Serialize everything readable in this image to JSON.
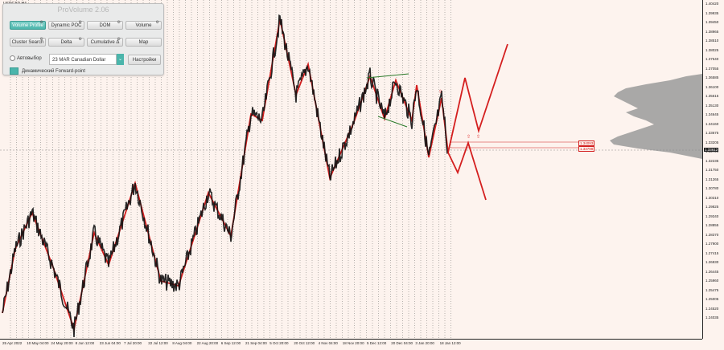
{
  "symbol": "USDCAD,H4",
  "panel": {
    "title": "ProVolume 2.06",
    "buttons": [
      {
        "label": "Volume Profile",
        "active": true,
        "gear": true
      },
      {
        "label": "Dynamic POC",
        "active": false,
        "gear": true
      },
      {
        "label": "DOM",
        "active": false,
        "gear": true
      },
      {
        "label": "Volume",
        "active": false,
        "gear": true
      },
      {
        "label": "Cluster Search",
        "active": false,
        "gear": true
      },
      {
        "label": "Delta",
        "active": false,
        "gear": true
      },
      {
        "label": "Cumulative Δ",
        "active": false,
        "gear": true
      },
      {
        "label": "Map",
        "active": false,
        "gear": false
      }
    ],
    "auto_label": "Автовыбор",
    "instrument": "23 MAR Canadian Dollar",
    "settings_label": "Настройки",
    "forward_label": "Динамический Forward-point",
    "accent_color": "#4bb5ab"
  },
  "price_ticks": [
    "1.40420",
    "1.39935",
    "1.39450",
    "1.38965",
    "1.38510",
    "1.38025",
    "1.37540",
    "1.37055",
    "1.36585",
    "1.36100",
    "1.35615",
    "1.35130",
    "1.34645",
    "1.34160",
    "1.33675",
    "1.33205",
    "1.32720",
    "1.32235",
    "1.31750",
    "1.31265",
    "1.30780",
    "1.30310",
    "1.29825",
    "1.29340",
    "1.28855",
    "1.28370",
    "1.27900",
    "1.27415",
    "1.26930",
    "1.26445",
    "1.25960",
    "1.25475",
    "1.25005",
    "1.24520",
    "1.24035"
  ],
  "current_price": "1.33612",
  "levels": [
    "1.34093",
    "1.33798"
  ],
  "time_ticks": [
    "25 Apr 2022",
    "10 May 04:00",
    "24 May 20:00",
    "8 Jun 12:00",
    "23 Jun 04:00",
    "7 Jul 20:00",
    "22 Jul 12:00",
    "8 Aug 04:00",
    "22 Aug 20:00",
    "6 Sep 12:00",
    "21 Sep 04:00",
    "5 Oct 20:00",
    "20 Oct 12:00",
    "4 Nov 04:00",
    "18 Nov 20:00",
    "5 Dec 12:00",
    "20 Dec 04:00",
    "3 Jan 20:00",
    "18 Jan 12:00"
  ],
  "colors": {
    "zigzag": "#d41f1f",
    "candles": "#111111",
    "wedge": "#2a7a2a",
    "profile": "#9a9a9a"
  }
}
